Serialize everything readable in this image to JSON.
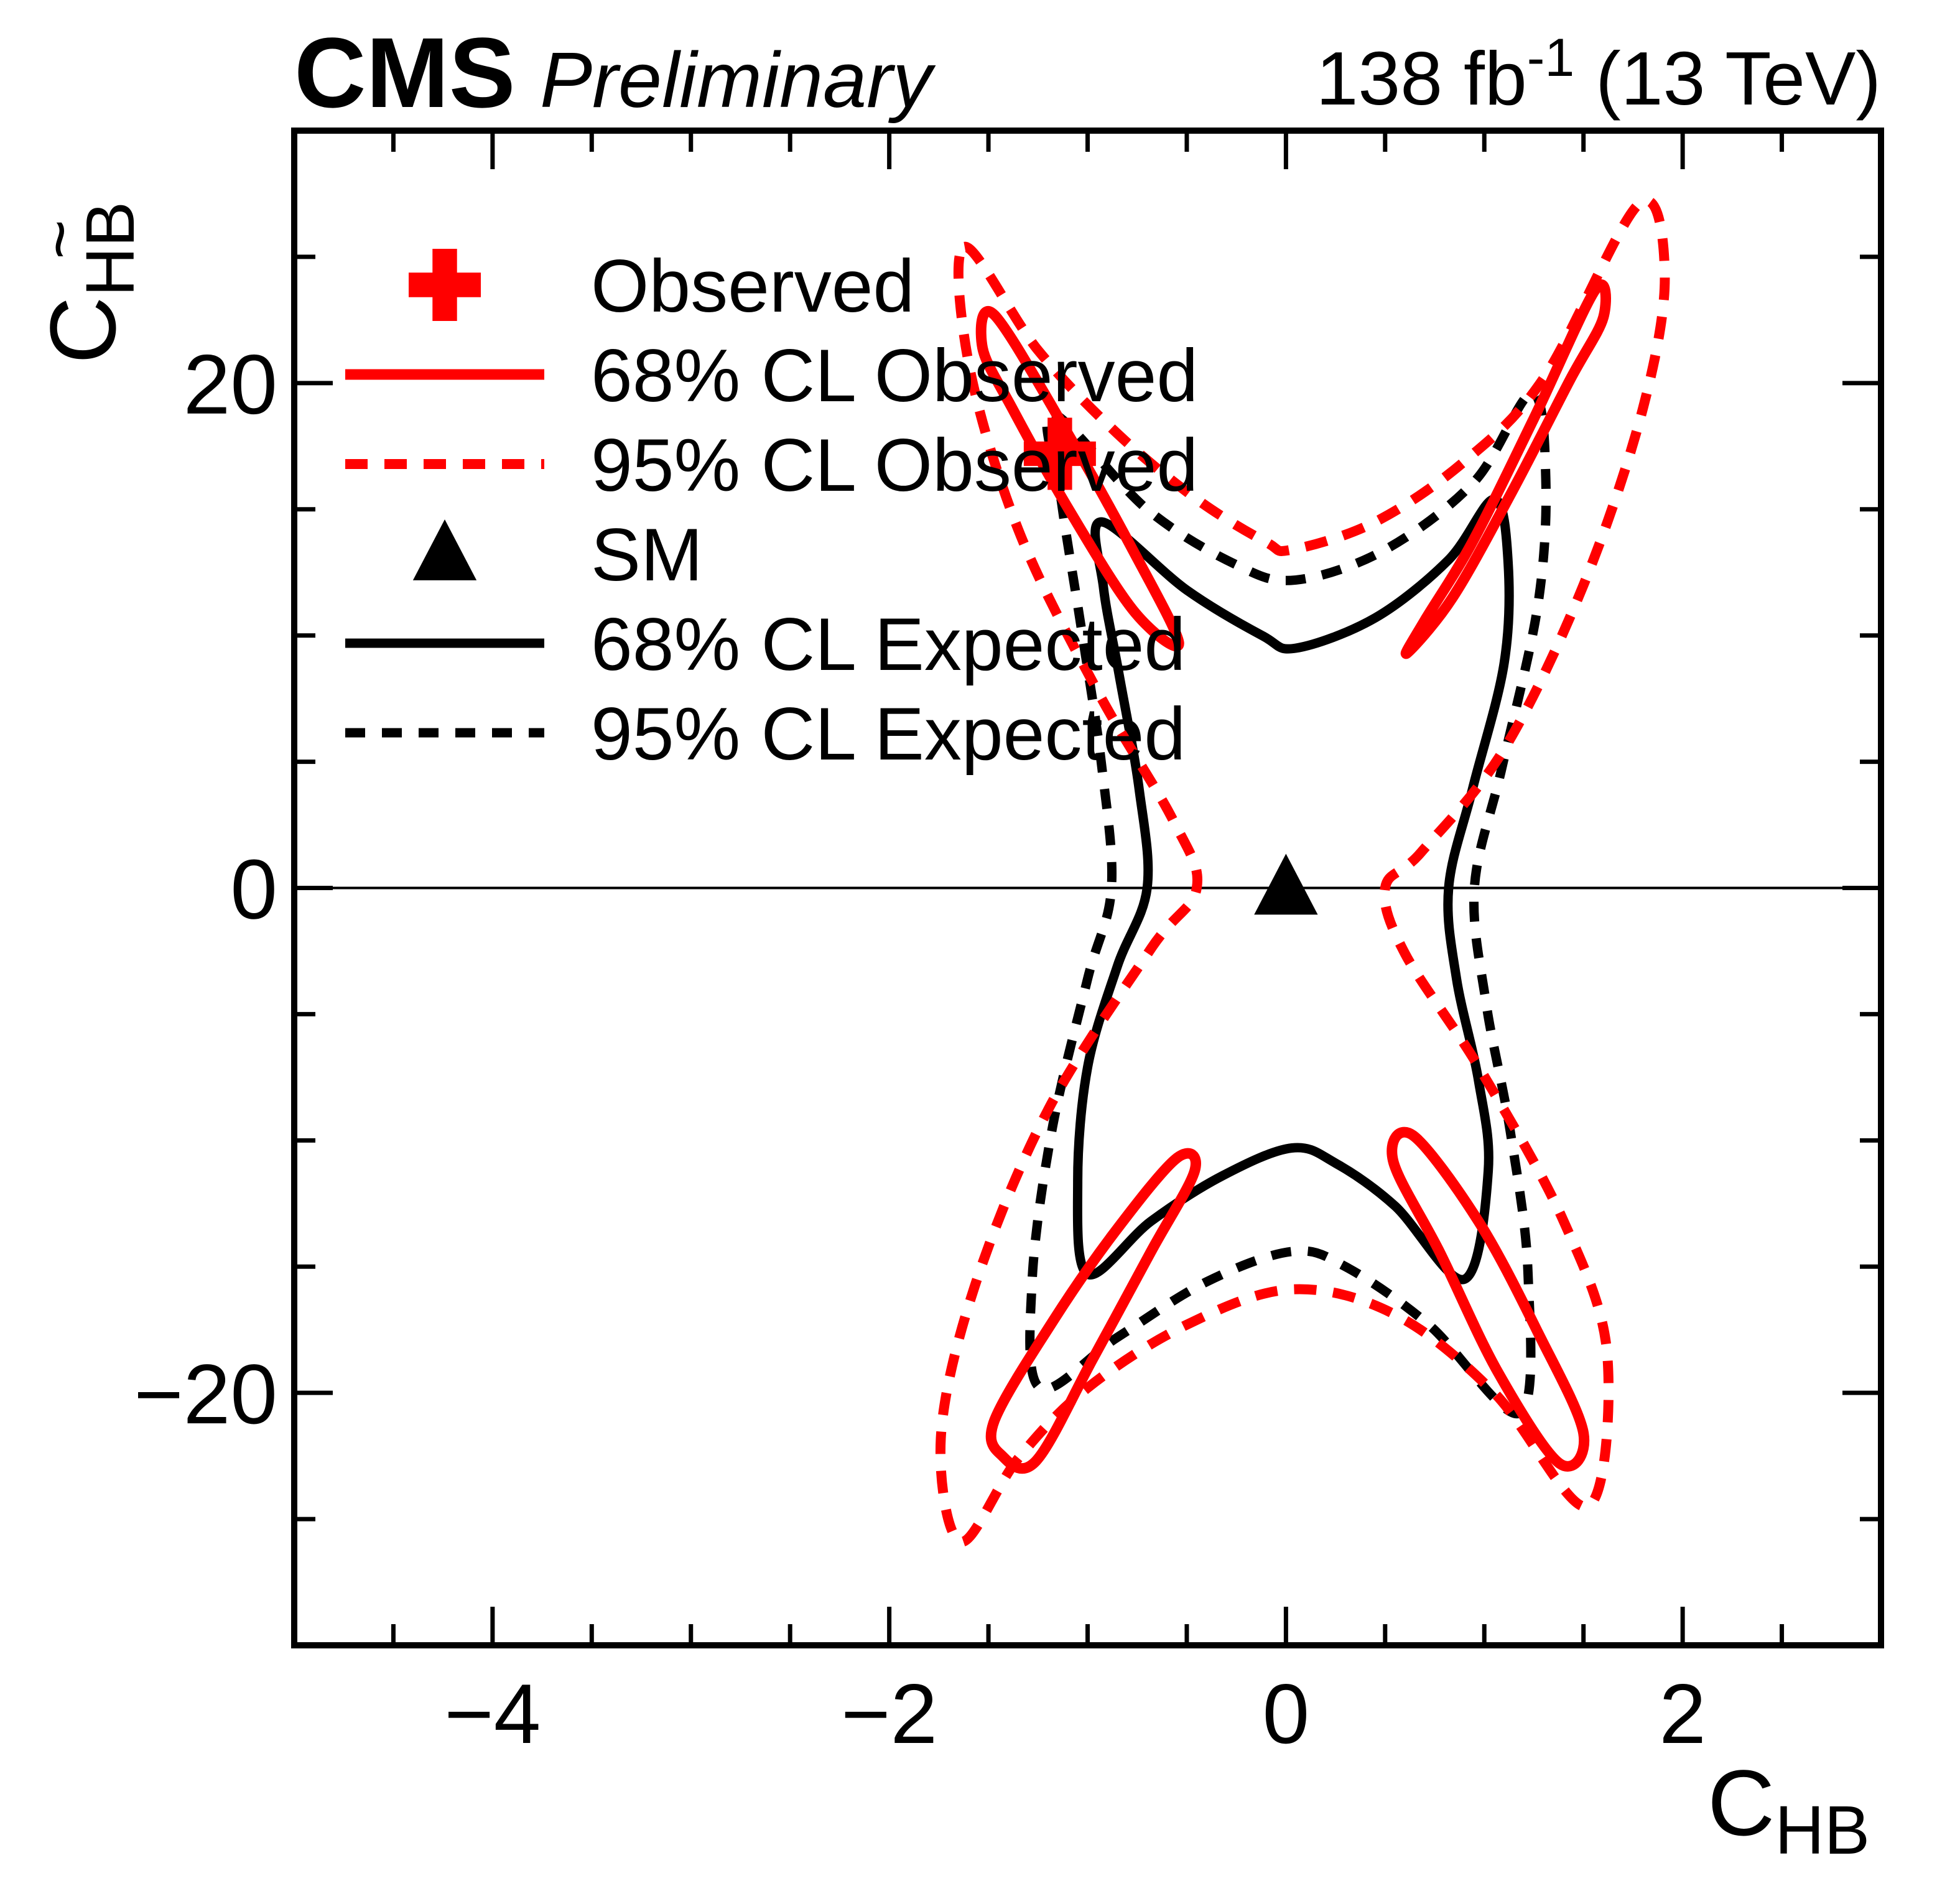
{
  "header": {
    "experiment": "CMS",
    "status": "Preliminary",
    "lumi_prefix": "138 fb",
    "lumi_sup": "-1",
    "lumi_suffix": " (13 TeV)"
  },
  "colors": {
    "observed": "#ff0000",
    "expected": "#000000",
    "frame": "#000000"
  },
  "legend": [
    {
      "label": "Observed",
      "marker": "cross",
      "color": "#ff0000"
    },
    {
      "label": "68% CL Observed",
      "marker": "solid-line",
      "color": "#ff0000"
    },
    {
      "label": "95% CL Observed",
      "marker": "dashed-line",
      "color": "#ff0000"
    },
    {
      "label": "SM",
      "marker": "triangle",
      "color": "#000000"
    },
    {
      "label": "68% CL Expected",
      "marker": "solid-line",
      "color": "#000000"
    },
    {
      "label": "95% CL Expected",
      "marker": "dashed-line",
      "color": "#000000"
    }
  ],
  "chart_data": {
    "type": "contour",
    "xlabel_base": "C",
    "xlabel_sub": "HB",
    "ylabel_base": "C",
    "ylabel_sub": "HB",
    "ylabel_tilde": "~",
    "xlim": [
      -5,
      3
    ],
    "ylim": [
      -30,
      30
    ],
    "x_major_ticks": [
      -4,
      -2,
      0,
      2
    ],
    "x_major_labels": [
      "−4",
      "−2",
      "0",
      "2"
    ],
    "x_minor_step": 0.5,
    "y_major_ticks": [
      -20,
      0,
      20
    ],
    "y_major_labels": [
      "−20",
      "0",
      "20"
    ],
    "y_minor_step": 5,
    "zero_line_y": 0,
    "grid": false,
    "legend_position": "top-left",
    "markers": {
      "observed_best_fit": {
        "x": -1.14,
        "y": 17.2
      },
      "sm_point": {
        "x": 0,
        "y": 0
      }
    },
    "contours": [
      {
        "name": "95% CL Expected",
        "color": "#000000",
        "style": "dashed",
        "paths": [
          [
            [
              -1.18,
              18.8
            ],
            [
              -0.7,
              15.0
            ],
            [
              -0.25,
              12.8
            ],
            [
              0.05,
              12.2
            ],
            [
              0.5,
              13.4
            ],
            [
              0.95,
              16.1
            ],
            [
              1.24,
              19.6
            ],
            [
              1.31,
              16.2
            ],
            [
              1.27,
              11.2
            ],
            [
              1.09,
              4.8
            ],
            [
              0.95,
              0.0
            ],
            [
              1.01,
              -4.6
            ],
            [
              1.13,
              -9.6
            ],
            [
              1.22,
              -15.2
            ],
            [
              1.18,
              -20.8
            ],
            [
              0.72,
              -17.3
            ],
            [
              0.3,
              -15.0
            ],
            [
              0.03,
              -14.4
            ],
            [
              -0.4,
              -15.6
            ],
            [
              -0.85,
              -17.8
            ],
            [
              -1.24,
              -19.8
            ],
            [
              -1.28,
              -15.6
            ],
            [
              -1.18,
              -9.6
            ],
            [
              -1.0,
              -3.6
            ],
            [
              -0.88,
              0.0
            ],
            [
              -0.93,
              4.9
            ],
            [
              -1.03,
              10.2
            ],
            [
              -1.13,
              15.2
            ]
          ]
        ]
      },
      {
        "name": "68% CL Expected",
        "color": "#000000",
        "style": "solid",
        "paths": [
          [
            [
              -0.93,
              14.5
            ],
            [
              -0.5,
              11.8
            ],
            [
              -0.12,
              10.0
            ],
            [
              0.05,
              9.5
            ],
            [
              0.45,
              10.7
            ],
            [
              0.82,
              13.0
            ],
            [
              1.05,
              15.4
            ],
            [
              1.12,
              12.9
            ],
            [
              1.1,
              8.9
            ],
            [
              0.94,
              3.9
            ],
            [
              0.82,
              0.0
            ],
            [
              0.86,
              -3.6
            ],
            [
              0.97,
              -7.6
            ],
            [
              1.02,
              -11.2
            ],
            [
              0.9,
              -15.5
            ],
            [
              0.55,
              -12.6
            ],
            [
              0.25,
              -10.9
            ],
            [
              0.03,
              -10.3
            ],
            [
              -0.32,
              -11.4
            ],
            [
              -0.68,
              -13.2
            ],
            [
              -1.0,
              -15.3
            ],
            [
              -1.05,
              -11.6
            ],
            [
              -1.0,
              -7.1
            ],
            [
              -0.85,
              -3.1
            ],
            [
              -0.7,
              0.0
            ],
            [
              -0.74,
              3.9
            ],
            [
              -0.84,
              8.4
            ],
            [
              -0.92,
              11.9
            ]
          ]
        ]
      },
      {
        "name": "95% CL Observed",
        "color": "#ff0000",
        "style": "dashed",
        "paths": [
          [
            [
              -1.62,
              25.4
            ],
            [
              -1.25,
              21.3
            ],
            [
              -0.85,
              18.0
            ],
            [
              -0.45,
              15.4
            ],
            [
              -0.1,
              13.7
            ],
            [
              0.03,
              13.4
            ],
            [
              0.45,
              14.5
            ],
            [
              0.9,
              16.9
            ],
            [
              1.3,
              20.2
            ],
            [
              1.78,
              27.1
            ],
            [
              1.91,
              24.3
            ],
            [
              1.8,
              19.0
            ],
            [
              1.5,
              12.0
            ],
            [
              1.1,
              5.5
            ],
            [
              0.68,
              1.4
            ],
            [
              0.5,
              0.0
            ],
            [
              0.6,
              -2.6
            ],
            [
              0.98,
              -7.2
            ],
            [
              1.4,
              -13.2
            ],
            [
              1.62,
              -18.5
            ],
            [
              1.52,
              -24.5
            ],
            [
              1.05,
              -20.0
            ],
            [
              0.55,
              -16.9
            ],
            [
              0.03,
              -15.9
            ],
            [
              -0.5,
              -17.3
            ],
            [
              -1.0,
              -19.8
            ],
            [
              -1.35,
              -22.6
            ],
            [
              -1.64,
              -25.9
            ],
            [
              -1.74,
              -21.8
            ],
            [
              -1.57,
              -15.8
            ],
            [
              -1.2,
              -8.8
            ],
            [
              -0.68,
              -2.4
            ],
            [
              -0.45,
              0.0
            ],
            [
              -0.57,
              2.7
            ],
            [
              -0.95,
              7.8
            ],
            [
              -1.35,
              14.2
            ],
            [
              -1.6,
              20.8
            ]
          ]
        ]
      },
      {
        "name": "68% CL Observed",
        "color": "#ff0000",
        "style": "solid",
        "paths": [
          [
            [
              -1.47,
              22.7
            ],
            [
              -1.1,
              18.0
            ],
            [
              -0.78,
              13.5
            ],
            [
              -0.54,
              9.7
            ],
            [
              -0.76,
              10.9
            ],
            [
              -1.08,
              14.8
            ],
            [
              -1.38,
              19.0
            ],
            [
              -1.53,
              21.4
            ]
          ],
          [
            [
              1.56,
              23.7
            ],
            [
              1.25,
              18.6
            ],
            [
              0.94,
              13.7
            ],
            [
              0.7,
              10.6
            ],
            [
              0.61,
              9.3
            ],
            [
              0.84,
              11.5
            ],
            [
              1.14,
              15.7
            ],
            [
              1.43,
              20.1
            ],
            [
              1.6,
              22.6
            ]
          ],
          [
            [
              -0.55,
              -10.7
            ],
            [
              -0.86,
              -13.6
            ],
            [
              -1.17,
              -17.1
            ],
            [
              -1.47,
              -21.1
            ],
            [
              -1.43,
              -22.5
            ],
            [
              -1.26,
              -22.7
            ],
            [
              -0.97,
              -18.6
            ],
            [
              -0.68,
              -14.4
            ],
            [
              -0.46,
              -11.2
            ]
          ],
          [
            [
              0.64,
              -9.8
            ],
            [
              0.97,
              -13.2
            ],
            [
              1.27,
              -17.6
            ],
            [
              1.5,
              -21.6
            ],
            [
              1.38,
              -22.8
            ],
            [
              1.07,
              -19.2
            ],
            [
              0.78,
              -14.5
            ],
            [
              0.54,
              -10.8
            ]
          ]
        ]
      }
    ]
  }
}
